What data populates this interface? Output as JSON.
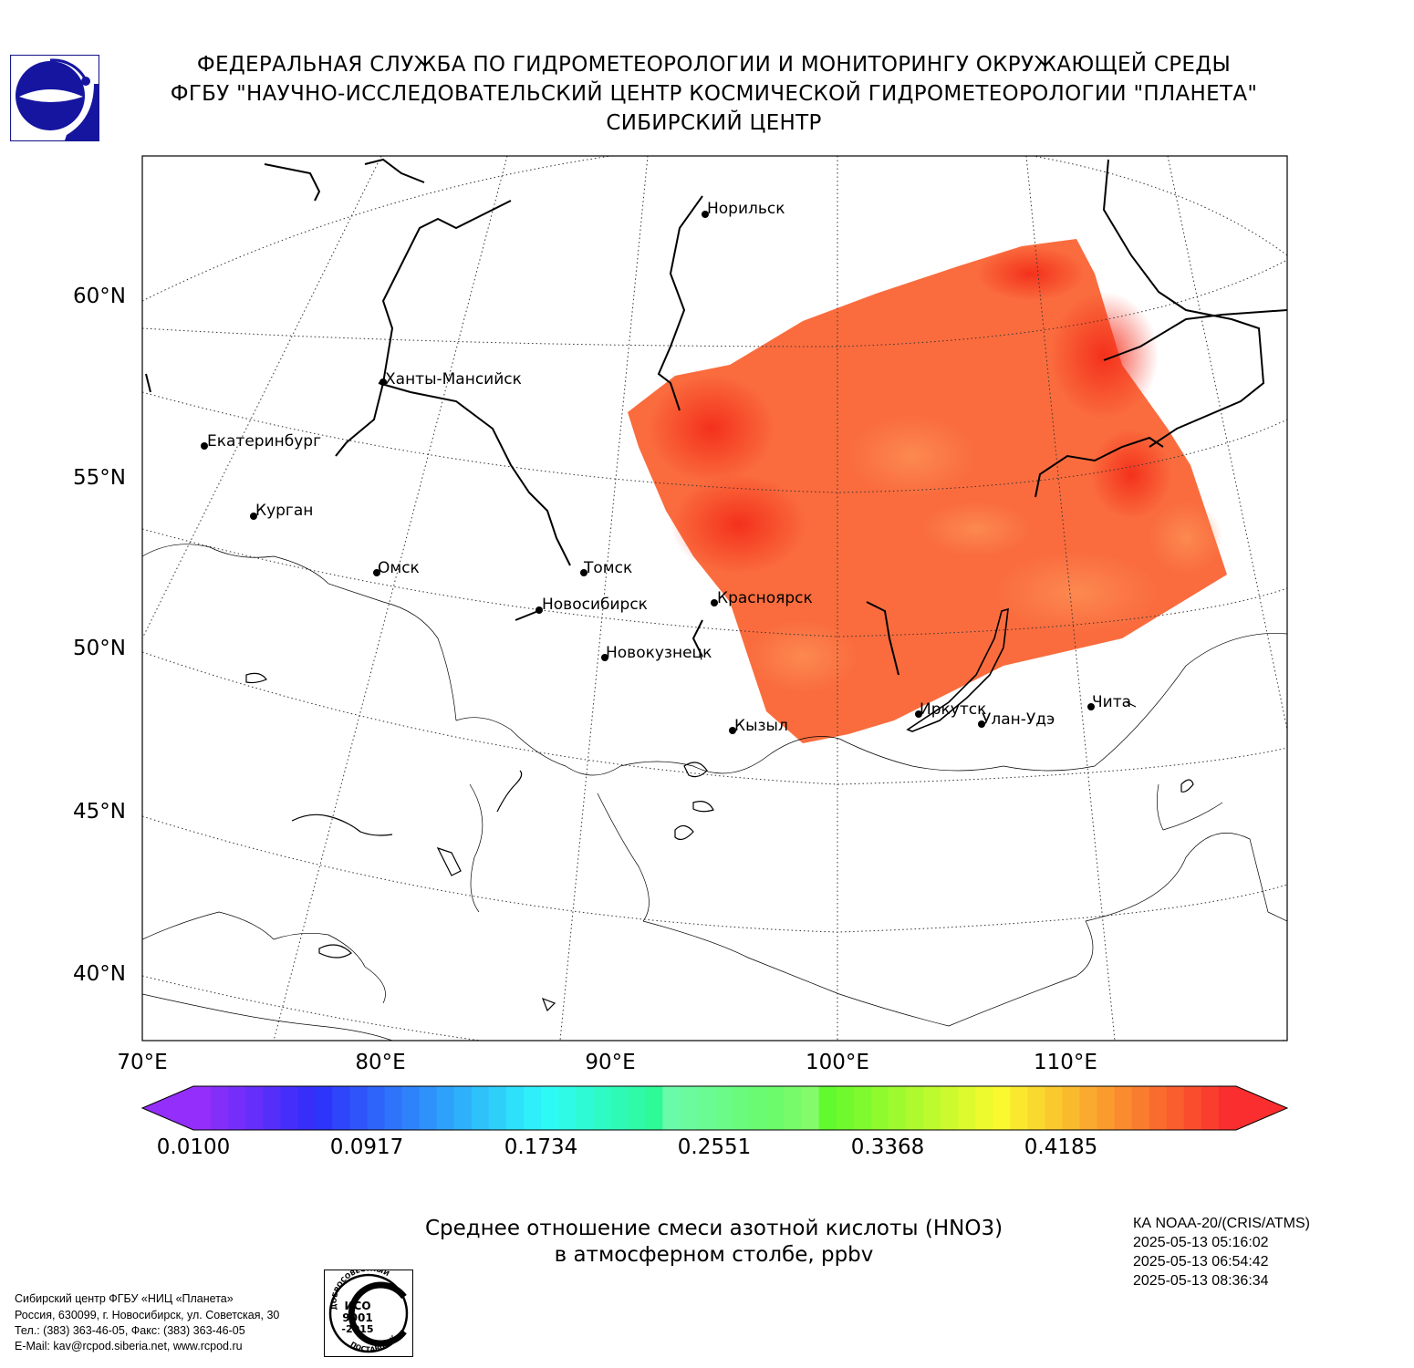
{
  "header": {
    "line1": "ФЕДЕРАЛЬНАЯ СЛУЖБА ПО ГИДРОМЕТЕОРОЛОГИИ И МОНИТОРИНГУ ОКРУЖАЮЩЕЙ СРЕДЫ",
    "line2": "ФГБУ \"НАУЧНО-ИССЛЕДОВАТЕЛЬСКИЙ ЦЕНТР КОСМИЧЕСКОЙ ГИДРОМЕТЕОРОЛОГИИ \"ПЛАНЕТА\"",
    "line3": "СИБИРСКИЙ ЦЕНТР"
  },
  "map": {
    "lat_labels": [
      "60°N",
      "55°N",
      "50°N",
      "45°N",
      "40°N"
    ],
    "lon_labels": [
      "70°E",
      "80°E",
      "90°E",
      "100°E",
      "110°E"
    ],
    "cities": [
      {
        "name": "Норильск"
      },
      {
        "name": "Ханты-Мансийск"
      },
      {
        "name": "Екатеринбург"
      },
      {
        "name": "Курган"
      },
      {
        "name": "Омск"
      },
      {
        "name": "Томск"
      },
      {
        "name": "Новосибирск"
      },
      {
        "name": "Красноярск"
      },
      {
        "name": "Новокузнецк"
      },
      {
        "name": "Иркутск"
      },
      {
        "name": "Кызыл"
      },
      {
        "name": "Улан-Удэ"
      },
      {
        "name": "Чита"
      }
    ],
    "data_fill_color": "#fb6a3c",
    "data_high_color": "#f53a1e"
  },
  "colorbar": {
    "ticks": [
      "0.0100",
      "0.0917",
      "0.1734",
      "0.2551",
      "0.3368",
      "0.4185"
    ],
    "min": 0.01,
    "max": 0.5002,
    "colormap": "rainbow"
  },
  "caption": {
    "line1": "Среднее отношение смеси азотной кислоты (HNO3)",
    "line2": "в атмосферном столбе, ppbv"
  },
  "meta": {
    "satellite": "КА NOAA-20/(CRIS/ATMS)",
    "times": [
      "2025-05-13 05:16:02",
      "2025-05-13 06:54:42",
      "2025-05-13 08:36:34"
    ]
  },
  "org": {
    "name": "Сибирский центр ФГБУ «НИЦ «Планета»",
    "address": "Россия, 630099, г. Новосибирск, ул. Советская, 30",
    "phone": "Тел.: (383) 363-46-05, Факс: (383) 363-46-05",
    "email": "E-Mail: kav@rcpod.siberia.net, www.rcpod.ru"
  },
  "iso_badge": {
    "top_text": "ДОБРОСОВЕСТНЫЙ",
    "line1": "ИСО",
    "line2": "9001",
    "line3": "-2015",
    "bottom_text": "ПОСТАВЩИК"
  }
}
